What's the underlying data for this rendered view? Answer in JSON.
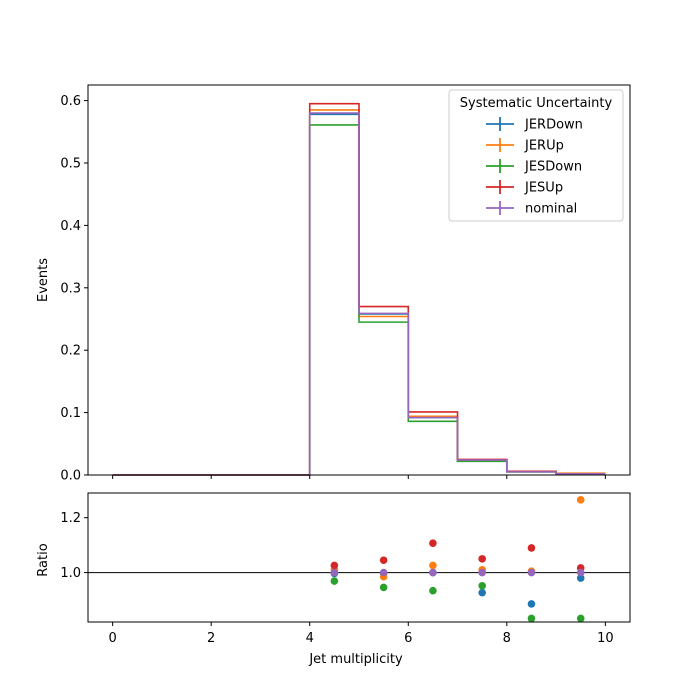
{
  "chart_data": [
    {
      "type": "line",
      "style": "step-histogram",
      "title": "",
      "xlabel": "",
      "ylabel": "Events",
      "xlim": [
        -0.5,
        10.5
      ],
      "ylim": [
        0,
        0.625
      ],
      "x_ticks": [
        0,
        2,
        4,
        6,
        8,
        10
      ],
      "y_ticks": [
        0.0,
        0.1,
        0.2,
        0.3,
        0.4,
        0.5,
        0.6
      ],
      "y_tick_labels": [
        "0.0",
        "0.1",
        "0.2",
        "0.3",
        "0.4",
        "0.5",
        "0.6"
      ],
      "bin_edges": [
        0,
        1,
        2,
        3,
        4,
        5,
        6,
        7,
        8,
        9,
        10
      ],
      "legend": {
        "title": "Systematic Uncertainty",
        "placement": "top-right"
      },
      "series": [
        {
          "name": "JERDown",
          "color": "#1f77b4",
          "values": [
            0,
            0,
            0,
            0,
            0.578,
            0.258,
            0.092,
            0.023,
            0.005,
            0.002
          ]
        },
        {
          "name": "JERUp",
          "color": "#ff7f0e",
          "values": [
            0,
            0,
            0,
            0,
            0.585,
            0.254,
            0.094,
            0.024,
            0.006,
            0.003
          ]
        },
        {
          "name": "JESDown",
          "color": "#2ca02c",
          "values": [
            0,
            0,
            0,
            0,
            0.561,
            0.245,
            0.086,
            0.022,
            0.005,
            0.001
          ]
        },
        {
          "name": "JESUp",
          "color": "#d62728",
          "values": [
            0,
            0,
            0,
            0,
            0.595,
            0.27,
            0.101,
            0.025,
            0.006,
            0.002
          ]
        },
        {
          "name": "nominal",
          "color": "#9467bd",
          "values": [
            0,
            0,
            0,
            0,
            0.58,
            0.259,
            0.092,
            0.024,
            0.005,
            0.002
          ]
        }
      ]
    },
    {
      "type": "scatter",
      "title": "",
      "xlabel": "Jet multiplicity",
      "ylabel": "Ratio",
      "xlim": [
        -0.5,
        10.5
      ],
      "ylim": [
        0.82,
        1.29
      ],
      "x_ticks": [
        0,
        2,
        4,
        6,
        8,
        10
      ],
      "y_ticks": [
        1.0,
        1.2
      ],
      "y_tick_labels": [
        "1.0",
        "1.2"
      ],
      "reference_line": 1.0,
      "x": [
        4.5,
        5.5,
        6.5,
        7.5,
        8.5,
        9.5
      ],
      "series": [
        {
          "name": "JERDown",
          "color": "#1f77b4",
          "values": [
            0.997,
            0.997,
            1.0,
            0.927,
            0.886,
            0.98
          ]
        },
        {
          "name": "JERUp",
          "color": "#ff7f0e",
          "values": [
            1.01,
            0.985,
            1.026,
            1.01,
            1.005,
            1.265
          ]
        },
        {
          "name": "JESDown",
          "color": "#2ca02c",
          "values": [
            0.969,
            0.946,
            0.934,
            0.952,
            0.833,
            0.833
          ]
        },
        {
          "name": "JESUp",
          "color": "#d62728",
          "values": [
            1.026,
            1.045,
            1.107,
            1.05,
            1.09,
            1.017
          ]
        },
        {
          "name": "nominal",
          "color": "#9467bd",
          "values": [
            1.0,
            1.0,
            1.0,
            1.0,
            1.0,
            1.0
          ]
        }
      ]
    }
  ]
}
